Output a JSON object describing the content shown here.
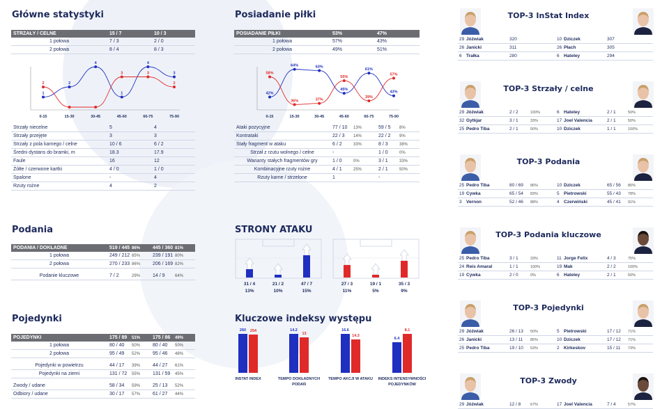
{
  "sections": {
    "main_stats": "Główne statystyki",
    "possession": "Posiadanie piłki",
    "passes": "Podania",
    "attack_sides": "STRONY ATAKU",
    "duels": "Pojedynki",
    "key_indexes": "Kluczowe indeksy występu"
  },
  "shots_table": {
    "header": [
      "STRZAŁY / CELNE",
      "15 / 7",
      "10 / 3"
    ],
    "rows": [
      [
        "1 połowa",
        "7 / 3",
        "2 / 0"
      ],
      [
        "2 połowa",
        "8 / 4",
        "8 / 3"
      ]
    ]
  },
  "possession_table": {
    "header": [
      "POSIADANIE PIŁKI",
      "53%",
      "47%"
    ],
    "rows": [
      [
        "1 połowa",
        "57%",
        "43%"
      ],
      [
        "2 połowa",
        "49%",
        "51%"
      ]
    ]
  },
  "shots_chart": {
    "categories": [
      "0-15",
      "15-30",
      "30-45",
      "45-60",
      "60-75",
      "75-90"
    ],
    "series": [
      {
        "color": "#1f2fbf",
        "values": [
          "1",
          "2",
          "4",
          "1",
          "4",
          "3"
        ]
      },
      {
        "color": "#e02a2a",
        "values": [
          "2",
          "",
          "",
          "3",
          "3",
          "2"
        ]
      }
    ]
  },
  "possession_chart": {
    "categories": [
      "0-15",
      "15-30",
      "30-45",
      "45-60",
      "60-75",
      "75-90"
    ],
    "series": [
      {
        "color": "#1f2fbf",
        "values": [
          "42%",
          "64%",
          "63%",
          "45%",
          "61%",
          "43%"
        ]
      },
      {
        "color": "#e02a2a",
        "values": [
          "58%",
          "36%",
          "37%",
          "55%",
          "39%",
          "57%"
        ]
      }
    ]
  },
  "main_stats_rows": [
    [
      "Strzały niecelne",
      "5",
      "4"
    ],
    [
      "Strzały przejęte",
      "3",
      "3"
    ],
    [
      "Strzały z pola karnego / celne",
      "10 / 6",
      "6 / 2"
    ],
    [
      "Średni dystans do bramki, m",
      "18.3",
      "17.9"
    ],
    [
      "Faule",
      "16",
      "12"
    ],
    [
      "Żółte / czerwone kartki",
      "4 / 0",
      "1 / 0"
    ],
    [
      "Spalone",
      "-",
      "4"
    ],
    [
      "Rzuty rożne",
      "4",
      "2"
    ]
  ],
  "attacks_rows": [
    {
      "label": "Ataki pozycyjne",
      "a": "77 / 10",
      "ap": "13%",
      "b": "59 / 5",
      "bp": "8%"
    },
    {
      "label": "Kontrataki",
      "a": "22 / 3",
      "ap": "14%",
      "b": "22 / 2",
      "bp": "9%"
    },
    {
      "label": "Stały fragment w ataku",
      "a": "6 / 2",
      "ap": "33%",
      "b": "8 / 3",
      "bp": "38%"
    },
    {
      "label": "Strzał z rzutu wolnego / celne",
      "a": "-",
      "ap": "",
      "b": "1 / 0",
      "bp": "0%"
    },
    {
      "label": "Warianty stałych fragmentów gry",
      "a": "1 / 0",
      "ap": "0%",
      "b": "3 / 1",
      "bp": "33%"
    },
    {
      "label": "Kombinacyjne rzuty rożne",
      "a": "4 / 1",
      "ap": "25%",
      "b": "2 / 1",
      "bp": "50%"
    },
    {
      "label": "Rzuty karne / strzelone",
      "a": "1",
      "ap": "",
      "b": "-",
      "bp": ""
    }
  ],
  "passes_table": {
    "header": {
      "label": "PODANIA / DOKŁADNE",
      "a": "519 / 445",
      "ap": "86%",
      "b": "445 / 360",
      "bp": "81%"
    },
    "rows": [
      {
        "label": "1 połowa",
        "a": "249 / 212",
        "ap": "85%",
        "b": "239 / 191",
        "bp": "80%"
      },
      {
        "label": "2 połowa",
        "a": "270 / 233",
        "ap": "86%",
        "b": "206 / 169",
        "bp": "82%"
      }
    ],
    "key": {
      "label": "Podanie kluczowe",
      "a": "7 / 2",
      "ap": "29%",
      "b": "14 / 9",
      "bp": "64%"
    }
  },
  "duels_table": {
    "header": {
      "label": "POJEDYNKI",
      "a": "175 / 89",
      "ap": "51%",
      "b": "175 / 86",
      "bp": "49%"
    },
    "rows": [
      {
        "label": "1 połowa",
        "a": "80 / 40",
        "ap": "50%",
        "b": "80 / 40",
        "bp": "50%"
      },
      {
        "label": "2 połowa",
        "a": "95 / 49",
        "ap": "52%",
        "b": "95 / 46",
        "bp": "48%"
      }
    ],
    "rows2": [
      {
        "label": "Pojedynki w powietrzu",
        "a": "44 / 17",
        "ap": "39%",
        "b": "44 / 27",
        "bp": "61%"
      },
      {
        "label": "Pojedynki na ziemi",
        "a": "131 / 72",
        "ap": "55%",
        "b": "131 / 59",
        "bp": "45%"
      }
    ],
    "rows3": [
      {
        "label": "Zwody / udane",
        "a": "58 / 34",
        "ap": "59%",
        "b": "25 / 13",
        "bp": "52%"
      },
      {
        "label": "Odbiory / udane",
        "a": "30 / 17",
        "ap": "57%",
        "b": "61 / 27",
        "bp": "44%"
      }
    ]
  },
  "attack_sides": {
    "team1": [
      {
        "label": "31 / 4",
        "pct": "13%",
        "height": 0.3
      },
      {
        "label": "21 / 2",
        "pct": "10%",
        "height": 0.1
      },
      {
        "label": "47 / 7",
        "pct": "15%",
        "height": 0.8
      }
    ],
    "team2": [
      {
        "label": "27 / 3",
        "pct": "11%",
        "height": 0.45
      },
      {
        "label": "19 / 1",
        "pct": "5%",
        "height": 0.1
      },
      {
        "label": "35 / 3",
        "pct": "9%",
        "height": 0.6
      }
    ]
  },
  "key_indexes": [
    {
      "label": "INSTAT INDEX",
      "a": "260",
      "b": "254",
      "a_num": 260,
      "b_num": 254
    },
    {
      "label": "TEMPO DOKŁADNYCH PODAŃ",
      "a": "14.2",
      "b": "13",
      "a_num": 14.2,
      "b_num": 13
    },
    {
      "label": "TEMPO AKCJI W ATAKU",
      "a": "16.6",
      "b": "14.3",
      "a_num": 16.6,
      "b_num": 14.3
    },
    {
      "label": "INDEKS INTENSYWNOŚCI POJEDYNKÓW",
      "a": "6.4",
      "b": "8.1",
      "a_num": 6.4,
      "b_num": 8.1
    }
  ],
  "tops": [
    {
      "title": "TOP-3 InStat Index",
      "rows": [
        {
          "n1": "29",
          "p1": "Jóźwiak",
          "v1": "320",
          "c1": "",
          "n2": "10",
          "p2": "Dziczek",
          "v2": "307",
          "c2": ""
        },
        {
          "n1": "26",
          "p1": "Janicki",
          "v1": "311",
          "c1": "",
          "n2": "26",
          "p2": "Płach",
          "v2": "305",
          "c2": ""
        },
        {
          "n1": "6",
          "p1": "Trałka",
          "v1": "280",
          "c1": "",
          "n2": "6",
          "p2": "Hateley",
          "v2": "294",
          "c2": ""
        }
      ]
    },
    {
      "title": "TOP-3 Strzały / celne",
      "rows": [
        {
          "n1": "29",
          "p1": "Jóźwiak",
          "v1": "2 / 2",
          "c1": "100%",
          "n2": "6",
          "p2": "Hateley",
          "v2": "2 / 1",
          "c2": "50%"
        },
        {
          "n1": "32",
          "p1": "Gytkjar",
          "v1": "3 / 1",
          "c1": "33%",
          "n2": "17",
          "p2": "Joel Valencia",
          "v2": "2 / 1",
          "c2": "50%"
        },
        {
          "n1": "25",
          "p1": "Pedro Tiba",
          "v1": "2 / 1",
          "c1": "50%",
          "n2": "10",
          "p2": "Dziczek",
          "v2": "1 / 1",
          "c2": "100%"
        }
      ]
    },
    {
      "title": "TOP-3 Podania",
      "rows": [
        {
          "n1": "25",
          "p1": "Pedro Tiba",
          "v1": "80 / 69",
          "c1": "86%",
          "n2": "10",
          "p2": "Dziczek",
          "v2": "65 / 56",
          "c2": "86%"
        },
        {
          "n1": "19",
          "p1": "Cywka",
          "v1": "65 / 54",
          "c1": "83%",
          "n2": "5",
          "p2": "Pietrowski",
          "v2": "55 / 43",
          "c2": "78%"
        },
        {
          "n1": "3",
          "p1": "Vernon",
          "v1": "52 / 46",
          "c1": "88%",
          "n2": "4",
          "p2": "Czerwiński",
          "v2": "45 / 41",
          "c2": "91%"
        }
      ]
    },
    {
      "title": "TOP-3 Podania kluczowe",
      "rows": [
        {
          "n1": "25",
          "p1": "Pedro Tiba",
          "v1": "3 / 1",
          "c1": "33%",
          "n2": "11",
          "p2": "Jorge Felix",
          "v2": "4 / 3",
          "c2": "75%"
        },
        {
          "n1": "24",
          "p1": "Reis Amaral",
          "v1": "1 / 1",
          "c1": "100%",
          "n2": "19",
          "p2": "Mak",
          "v2": "2 / 2",
          "c2": "100%"
        },
        {
          "n1": "19",
          "p1": "Cywka",
          "v1": "2 / 0",
          "c1": "0%",
          "n2": "6",
          "p2": "Hateley",
          "v2": "2 / 1",
          "c2": "50%"
        }
      ]
    },
    {
      "title": "TOP-3 Pojedynki",
      "rows": [
        {
          "n1": "29",
          "p1": "Jóźwiak",
          "v1": "26 / 13",
          "c1": "50%",
          "n2": "5",
          "p2": "Pietrowski",
          "v2": "17 / 12",
          "c2": "71%"
        },
        {
          "n1": "26",
          "p1": "Janicki",
          "v1": "13 / 11",
          "c1": "85%",
          "n2": "10",
          "p2": "Dziczek",
          "v2": "17 / 12",
          "c2": "71%"
        },
        {
          "n1": "25",
          "p1": "Pedro Tiba",
          "v1": "19 / 10",
          "c1": "53%",
          "n2": "2",
          "p2": "Kirkeskov",
          "v2": "15 / 11",
          "c2": "73%"
        }
      ]
    },
    {
      "title": "TOP-3 Zwody",
      "rows": [
        {
          "n1": "29",
          "p1": "Jóźwiak",
          "v1": "12 / 8",
          "c1": "67%",
          "n2": "17",
          "p2": "Joel Valencia",
          "v2": "7 / 4",
          "c2": "57%"
        }
      ]
    }
  ],
  "colors": {
    "team1": "#1f2fbf",
    "team2": "#e02a2a",
    "header": "#6b6d73"
  }
}
